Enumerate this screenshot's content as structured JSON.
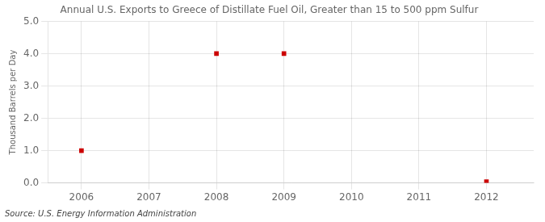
{
  "chart_data": {
    "type": "scatter",
    "title": "Annual U.S. Exports to Greece of Distillate Fuel Oil, Greater than 15 to 500 ppm Sulfur",
    "ylabel": "Thousand Barrels per Day",
    "source": "Source: U.S. Energy Information Administration",
    "x": [
      2006,
      2008,
      2009,
      2012
    ],
    "values": [
      1.0,
      4.0,
      4.0,
      0.04
    ],
    "color": "#cc0000",
    "marker": "square",
    "xlim": [
      2005.5,
      2012.7
    ],
    "xticks": [
      2006,
      2007,
      2008,
      2009,
      2010,
      2011,
      2012
    ],
    "ylim": [
      0.0,
      5.0
    ],
    "yticks": [
      {
        "value": 0.0,
        "label": "0.0"
      },
      {
        "value": 1.0,
        "label": "1.0"
      },
      {
        "value": 2.0,
        "label": "2.0"
      },
      {
        "value": 3.0,
        "label": "3.0"
      },
      {
        "value": 4.0,
        "label": "4.0"
      },
      {
        "value": 5.0,
        "label": "5.0"
      }
    ],
    "grid": true
  }
}
